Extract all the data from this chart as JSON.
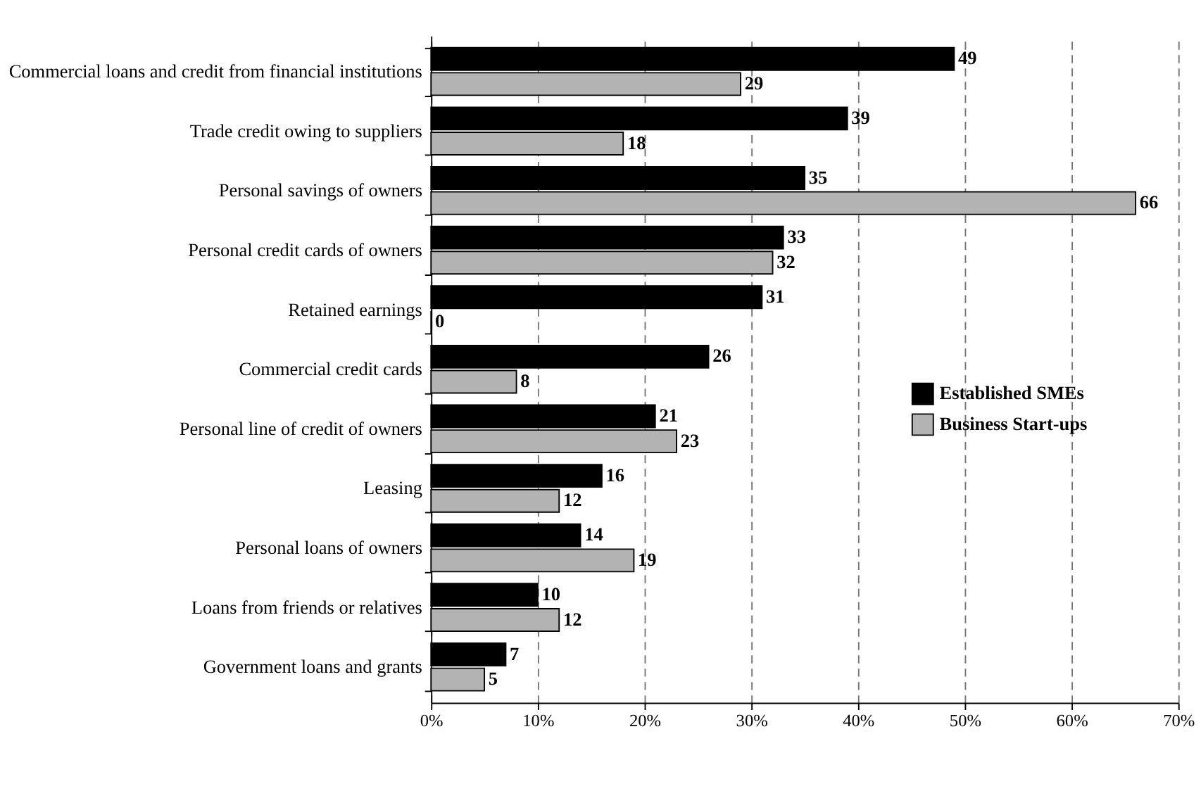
{
  "chart_data": {
    "type": "bar",
    "orientation": "horizontal",
    "categories": [
      "Commercial loans and credit from financial institutions",
      "Trade credit owing to suppliers",
      "Personal savings of owners",
      "Personal credit cards of owners",
      "Retained earnings",
      "Commercial credit cards",
      "Personal line of credit of owners",
      "Leasing",
      "Personal loans of owners",
      "Loans from friends or relatives",
      "Government loans and grants"
    ],
    "series": [
      {
        "name": "Established SMEs",
        "color": "#000000",
        "values": [
          49,
          39,
          35,
          33,
          31,
          26,
          21,
          16,
          14,
          10,
          7
        ]
      },
      {
        "name": "Business Start-ups",
        "color": "#b3b3b3",
        "values": [
          29,
          18,
          66,
          32,
          0,
          8,
          23,
          12,
          19,
          12,
          5
        ]
      }
    ],
    "xlim": [
      0,
      70
    ],
    "xticks": [
      {
        "value": 0,
        "label": "0%"
      },
      {
        "value": 10,
        "label": "10%"
      },
      {
        "value": 20,
        "label": "20%"
      },
      {
        "value": 30,
        "label": "30%"
      },
      {
        "value": 40,
        "label": "40%"
      },
      {
        "value": 50,
        "label": "50%"
      },
      {
        "value": 60,
        "label": "60%"
      },
      {
        "value": 70,
        "label": "70%"
      }
    ],
    "grid": "x",
    "legend": "right",
    "data_labels": true
  }
}
